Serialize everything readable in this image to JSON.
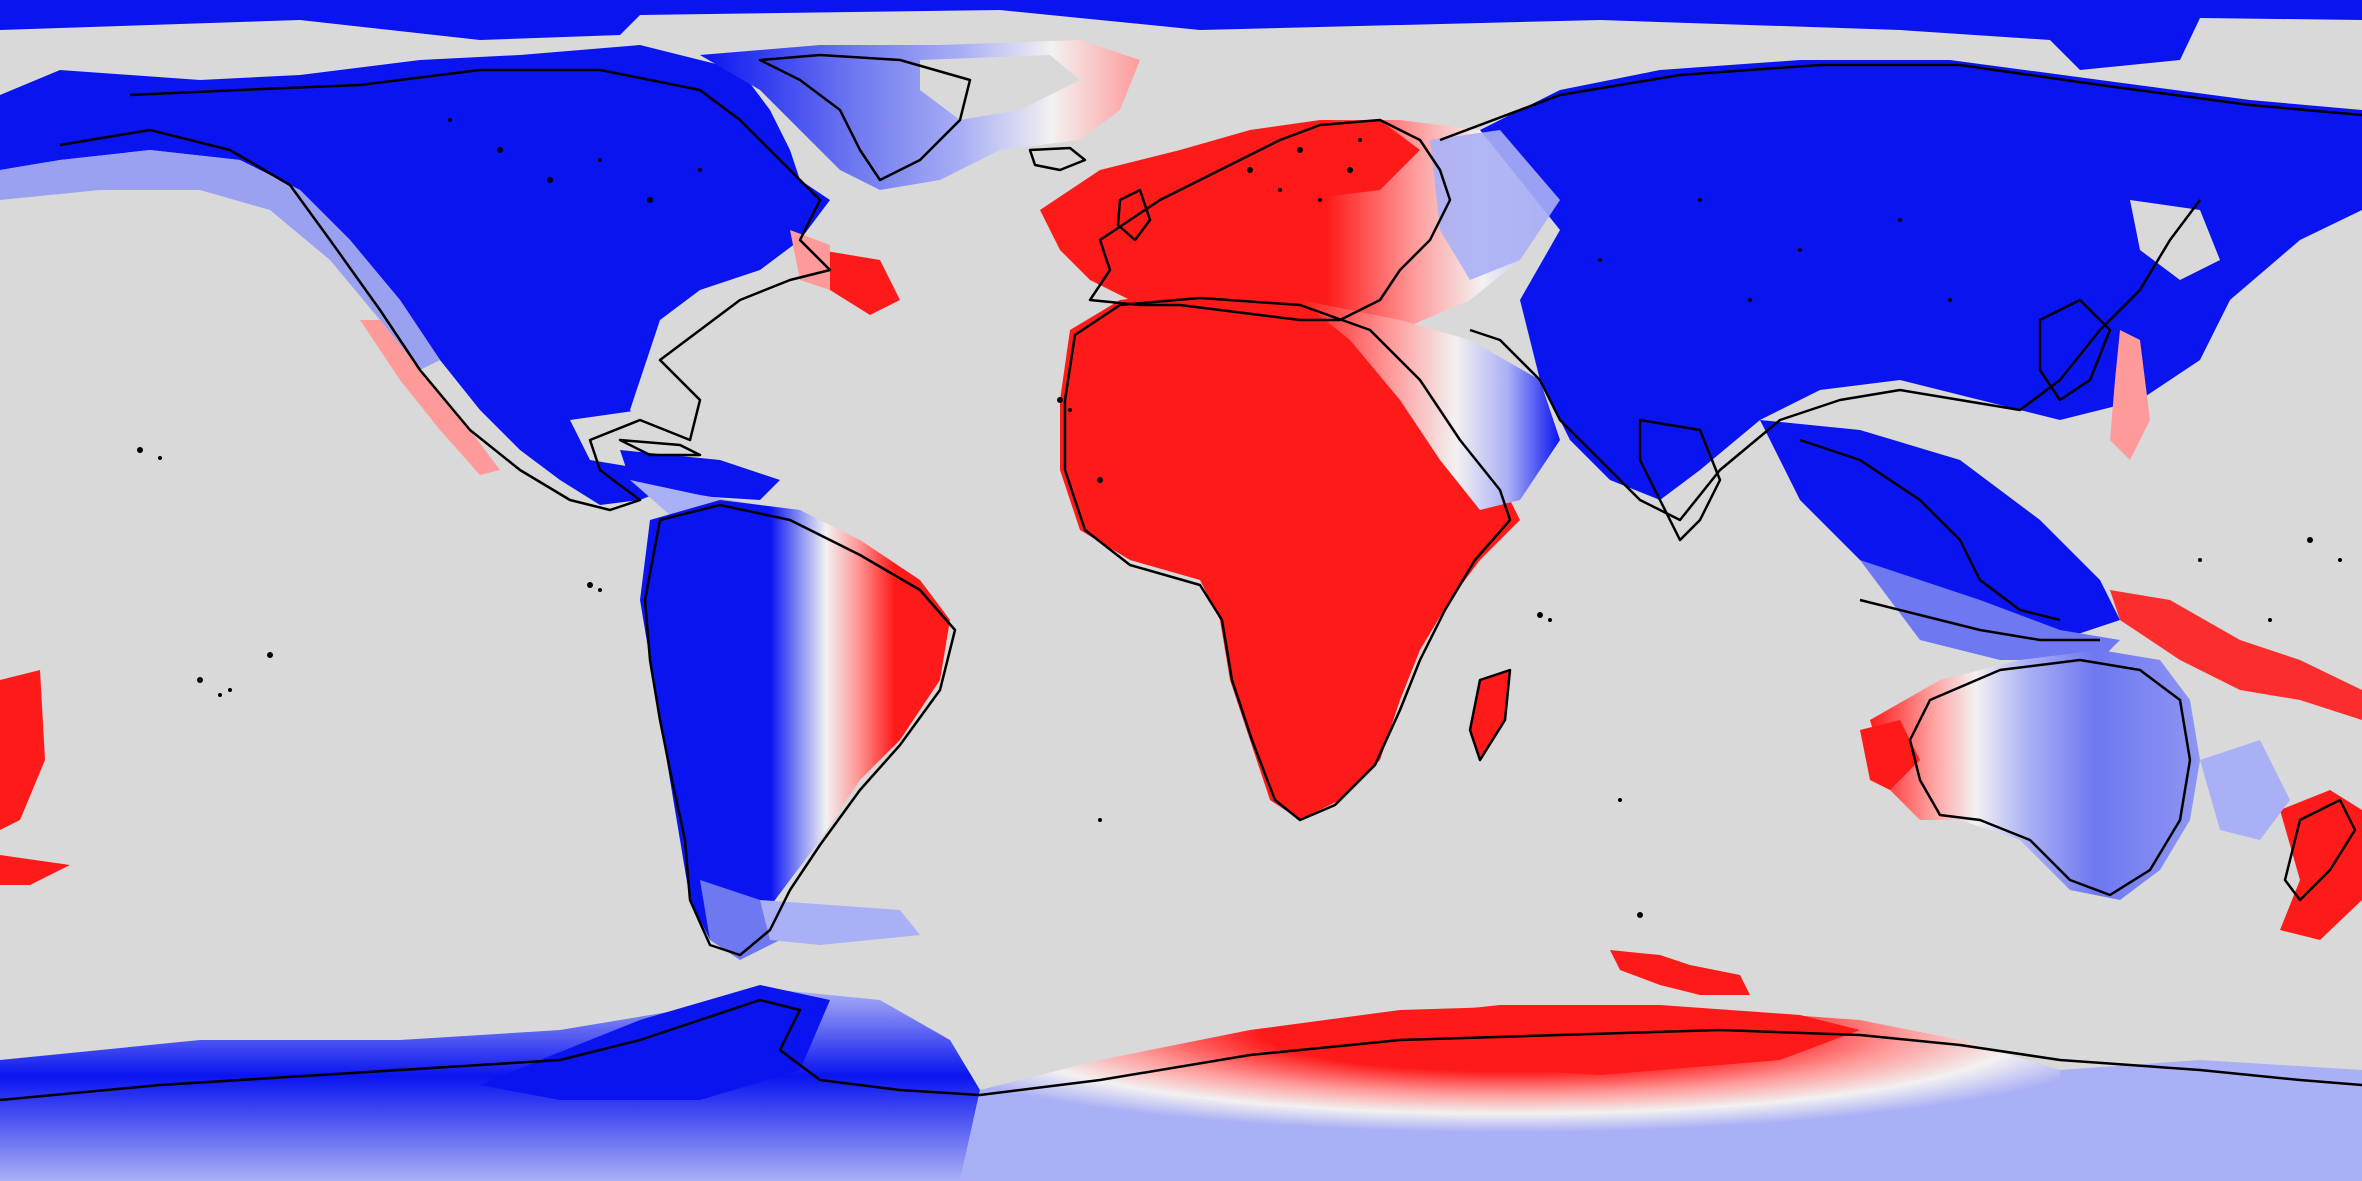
{
  "map": {
    "projection": "equirectangular",
    "background_color": "#d9d9d9",
    "coastline_color": "#000000",
    "palette": {
      "strong_red": "#ff1a1a",
      "light_red": "#ff9a9a",
      "white": "#f3f1f1",
      "light_blue": "#aab0f5",
      "mid_blue": "#6e78f0",
      "strong_blue": "#0a14f0"
    },
    "labels": []
  }
}
